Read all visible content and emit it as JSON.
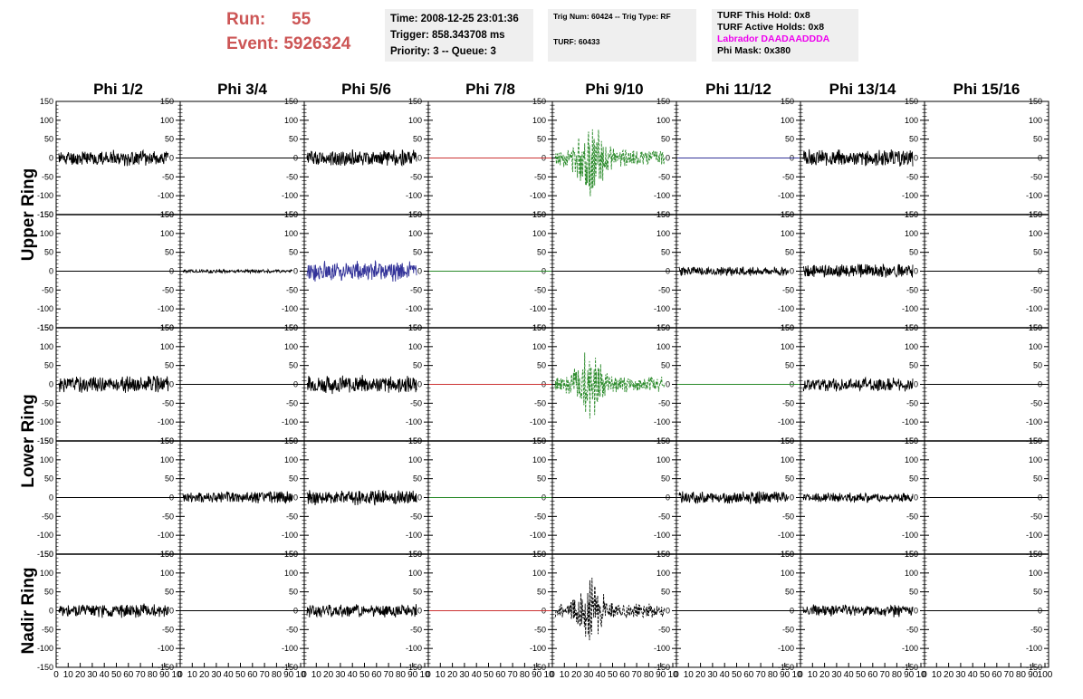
{
  "header": {
    "run_label": "Run:",
    "run_value": "55",
    "event_label": "Event:",
    "event_value": "5926324",
    "time_line": "Time: 2008-12-25 23:01:36",
    "trigger_line": "Trigger: 858.343708 ms",
    "priority_line": "Priority: 3 -- Queue: 3",
    "trig_num_line": "Trig Num: 60424 -- Trig Type: RF",
    "turf_line": "TURF: 60433",
    "turf_hold_line": "TURF This Hold: 0x8",
    "turf_active_line": "TURF Active Holds: 0x8",
    "labrador_line": "Labrador DAADAADDDA",
    "phi_mask_line": "Phi Mask: 0x380",
    "colors": {
      "run_text": "#cc5555",
      "labrador_text": "#ee00ee",
      "info_bg": "#efefef"
    }
  },
  "chart_data": {
    "type": "line",
    "columns": [
      "Phi 1/2",
      "Phi 3/4",
      "Phi 5/6",
      "Phi 7/8",
      "Phi 9/10",
      "Phi 11/12",
      "Phi 13/14",
      "Phi 15/16"
    ],
    "rows": [
      "Upper Ring",
      "Lower Ring",
      "Nadir Ring"
    ],
    "ylim": [
      -150,
      150
    ],
    "xlim": [
      0,
      100
    ],
    "y_ticks": [
      "150",
      "100",
      "50",
      "0",
      "-50",
      "-100",
      "-150"
    ],
    "x_ticks_first": [
      "0",
      "10",
      "20",
      "30",
      "40",
      "50",
      "60",
      "70",
      "80",
      "90",
      "10"
    ],
    "x_ticks_last": [
      "0",
      "10",
      "20",
      "30",
      "40",
      "50",
      "60",
      "70",
      "80",
      "90",
      "100"
    ],
    "grid": false,
    "panels": [
      [
        {
          "kind": "noise",
          "amp": 22,
          "color": "#000000",
          "seed": 11
        },
        {
          "kind": "flat",
          "color": "#000000"
        },
        {
          "kind": "noise",
          "amp": 24,
          "color": "#000000",
          "seed": 12
        },
        {
          "kind": "flat",
          "color": "#cc3333"
        },
        {
          "kind": "pulse",
          "amp": 95,
          "color": "#2a8a2a",
          "dashed": true,
          "seed": 13
        },
        {
          "kind": "flat",
          "color": "#333399"
        },
        {
          "kind": "noise",
          "amp": 24,
          "color": "#000000",
          "seed": 14
        },
        {
          "kind": "flat",
          "color": "#000000"
        }
      ],
      [
        {
          "kind": "flat",
          "color": "#000000"
        },
        {
          "kind": "noise",
          "amp": 5,
          "color": "#000000",
          "seed": 21
        },
        {
          "kind": "noise",
          "amp": 30,
          "color": "#333399",
          "seed": 22
        },
        {
          "kind": "flat",
          "color": "#2a8a2a"
        },
        {
          "kind": "flat",
          "color": "#000000"
        },
        {
          "kind": "noise",
          "amp": 14,
          "color": "#000000",
          "seed": 23
        },
        {
          "kind": "noise",
          "amp": 20,
          "color": "#000000",
          "seed": 24
        },
        {
          "kind": "flat",
          "color": "#000000"
        }
      ],
      [
        {
          "kind": "noise",
          "amp": 24,
          "color": "#000000",
          "seed": 31
        },
        {
          "kind": "flat",
          "color": "#000000"
        },
        {
          "kind": "noise",
          "amp": 26,
          "color": "#000000",
          "seed": 32
        },
        {
          "kind": "flat",
          "color": "#cc3333"
        },
        {
          "kind": "pulse",
          "amp": 90,
          "color": "#2a8a2a",
          "dashed": true,
          "seed": 33
        },
        {
          "kind": "flat",
          "color": "#2a8a2a"
        },
        {
          "kind": "noise",
          "amp": 20,
          "color": "#000000",
          "seed": 34
        },
        {
          "kind": "flat",
          "color": "#000000"
        }
      ],
      [
        {
          "kind": "flat",
          "color": "#000000"
        },
        {
          "kind": "noise",
          "amp": 18,
          "color": "#000000",
          "seed": 41
        },
        {
          "kind": "noise",
          "amp": 22,
          "color": "#000000",
          "seed": 42
        },
        {
          "kind": "flat",
          "color": "#2a8a2a"
        },
        {
          "kind": "flat",
          "color": "#000000"
        },
        {
          "kind": "noise",
          "amp": 18,
          "color": "#000000",
          "seed": 43
        },
        {
          "kind": "noise",
          "amp": 14,
          "color": "#000000",
          "seed": 44
        },
        {
          "kind": "flat",
          "color": "#000000"
        }
      ],
      [
        {
          "kind": "noise",
          "amp": 20,
          "color": "#000000",
          "seed": 51
        },
        {
          "kind": "flat",
          "color": "#000000"
        },
        {
          "kind": "noise",
          "amp": 20,
          "color": "#000000",
          "seed": 52
        },
        {
          "kind": "flat",
          "color": "#cc3333"
        },
        {
          "kind": "pulse",
          "amp": 80,
          "color": "#000000",
          "dashed": true,
          "seed": 53
        },
        {
          "kind": "flat",
          "color": "#000000"
        },
        {
          "kind": "noise",
          "amp": 18,
          "color": "#000000",
          "seed": 54
        },
        {
          "kind": "flat",
          "color": "#000000"
        }
      ]
    ]
  }
}
